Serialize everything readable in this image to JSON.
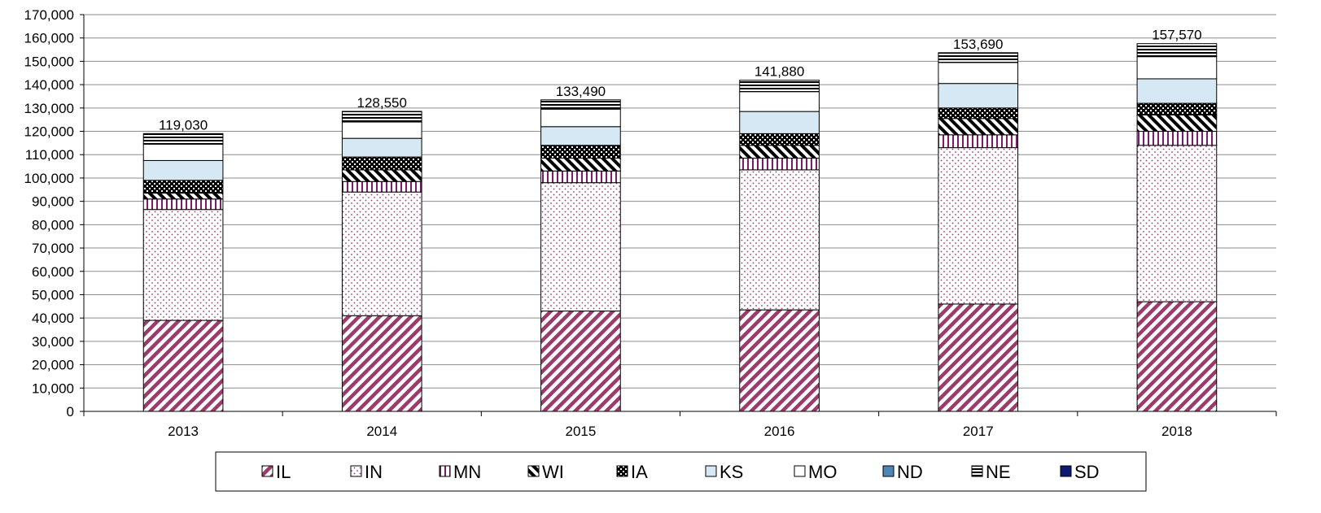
{
  "chart_data": {
    "type": "bar",
    "stacked": true,
    "categories": [
      "2013",
      "2014",
      "2015",
      "2016",
      "2017",
      "2018"
    ],
    "ylim": [
      0,
      170000
    ],
    "ytick_step": 10000,
    "ytick_labels": [
      "0",
      "10,000",
      "20,000",
      "30,000",
      "40,000",
      "50,000",
      "60,000",
      "70,000",
      "80,000",
      "90,000",
      "100,000",
      "110,000",
      "120,000",
      "130,000",
      "140,000",
      "150,000",
      "160,000",
      "170,000"
    ],
    "grid": true,
    "legend_position": "bottom",
    "title": "",
    "xlabel": "",
    "ylabel": "",
    "series": [
      {
        "name": "IL",
        "values": [
          39000,
          41000,
          43000,
          43500,
          46000,
          47000
        ],
        "pattern": "diagonal",
        "color": "#9b3a6b"
      },
      {
        "name": "IN",
        "values": [
          47500,
          53000,
          55000,
          60000,
          67000,
          67000
        ],
        "pattern": "dots",
        "color": "#9b3a6b"
      },
      {
        "name": "MN",
        "values": [
          4500,
          4500,
          5000,
          5000,
          5500,
          6000
        ],
        "pattern": "vertical",
        "color": "#7a1c6b"
      },
      {
        "name": "WI",
        "values": [
          2500,
          5000,
          5500,
          5500,
          7000,
          7000
        ],
        "pattern": "backdiag",
        "color": "#000000"
      },
      {
        "name": "IA",
        "values": [
          5500,
          5500,
          5500,
          5000,
          4500,
          5000
        ],
        "pattern": "checker",
        "color": "#000000"
      },
      {
        "name": "KS",
        "values": [
          8500,
          8000,
          8000,
          9500,
          10500,
          10500
        ],
        "pattern": "solid",
        "color": "#d7e8f5"
      },
      {
        "name": "MO",
        "values": [
          7000,
          7000,
          7500,
          8500,
          9000,
          9500
        ],
        "pattern": "solid",
        "color": "#ffffff"
      },
      {
        "name": "ND",
        "values": [
          0,
          0,
          0,
          0,
          0,
          0
        ],
        "pattern": "solid",
        "color": "#4f86b8"
      },
      {
        "name": "NE",
        "values": [
          4530,
          4550,
          3990,
          4880,
          4190,
          5570
        ],
        "pattern": "hlines",
        "color": "#000000"
      },
      {
        "name": "SD",
        "values": [
          0,
          0,
          0,
          0,
          0,
          0
        ],
        "pattern": "solid",
        "color": "#0c1a73"
      }
    ],
    "totals": [
      119030,
      128550,
      133490,
      141880,
      153690,
      157570
    ],
    "total_labels": [
      "119,030",
      "128,550",
      "133,490",
      "141,880",
      "153,690",
      "157,570"
    ]
  }
}
